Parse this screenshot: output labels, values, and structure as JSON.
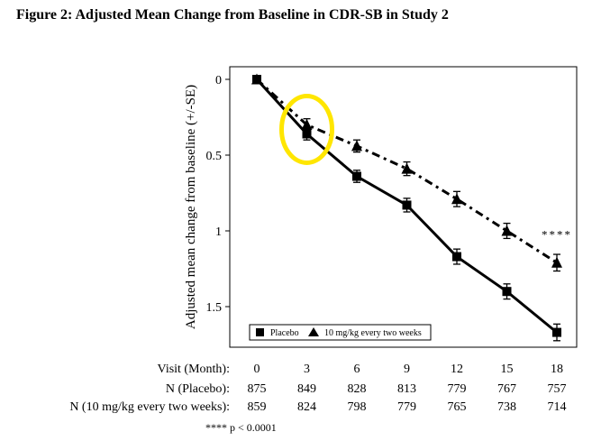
{
  "figure": {
    "title": "Figure 2: Adjusted Mean Change from Baseline in CDR-SB in Study 2",
    "footnote": "**** p < 0.0001",
    "significance_marker": "****"
  },
  "table": {
    "rows": [
      {
        "label": "Visit (Month):",
        "values": [
          "0",
          "3",
          "6",
          "9",
          "12",
          "15",
          "18"
        ]
      },
      {
        "label": "N (Placebo):",
        "values": [
          "875",
          "849",
          "828",
          "813",
          "779",
          "767",
          "757"
        ]
      },
      {
        "label": "N (10 mg/kg every two weeks):",
        "values": [
          "859",
          "824",
          "798",
          "779",
          "765",
          "738",
          "714"
        ]
      }
    ]
  },
  "chart_data": {
    "type": "line",
    "title": "",
    "xlabel": "",
    "ylabel": "Adjusted mean change from baseline (+/-SE)",
    "x": [
      0,
      3,
      6,
      9,
      12,
      15,
      18
    ],
    "xlim": [
      0,
      18
    ],
    "ylim": [
      0,
      1.75
    ],
    "y_inverted": true,
    "yticks": [
      0,
      0.5,
      1,
      1.5
    ],
    "ytick_labels": [
      "0",
      "0.5",
      "1",
      "1.5"
    ],
    "grid": false,
    "legend_position": "bottom-center",
    "series": [
      {
        "name": "Placebo",
        "marker": "square",
        "line_style": "solid",
        "color": "#000000",
        "values": [
          0,
          0.36,
          0.64,
          0.83,
          1.17,
          1.4,
          1.67
        ],
        "se": [
          0.01,
          0.04,
          0.04,
          0.045,
          0.05,
          0.05,
          0.055
        ]
      },
      {
        "name": "10 mg/kg every two weeks",
        "marker": "triangle",
        "line_style": "dashed",
        "color": "#000000",
        "values": [
          0,
          0.3,
          0.44,
          0.59,
          0.79,
          1.0,
          1.21
        ],
        "se": [
          0.01,
          0.04,
          0.04,
          0.045,
          0.05,
          0.05,
          0.055
        ]
      }
    ],
    "annotations": [
      {
        "text": "****",
        "x": 18,
        "y": 1.05
      }
    ],
    "highlight": {
      "shape": "circle",
      "color": "#FFE600",
      "x": 3,
      "y": 0.33
    }
  }
}
